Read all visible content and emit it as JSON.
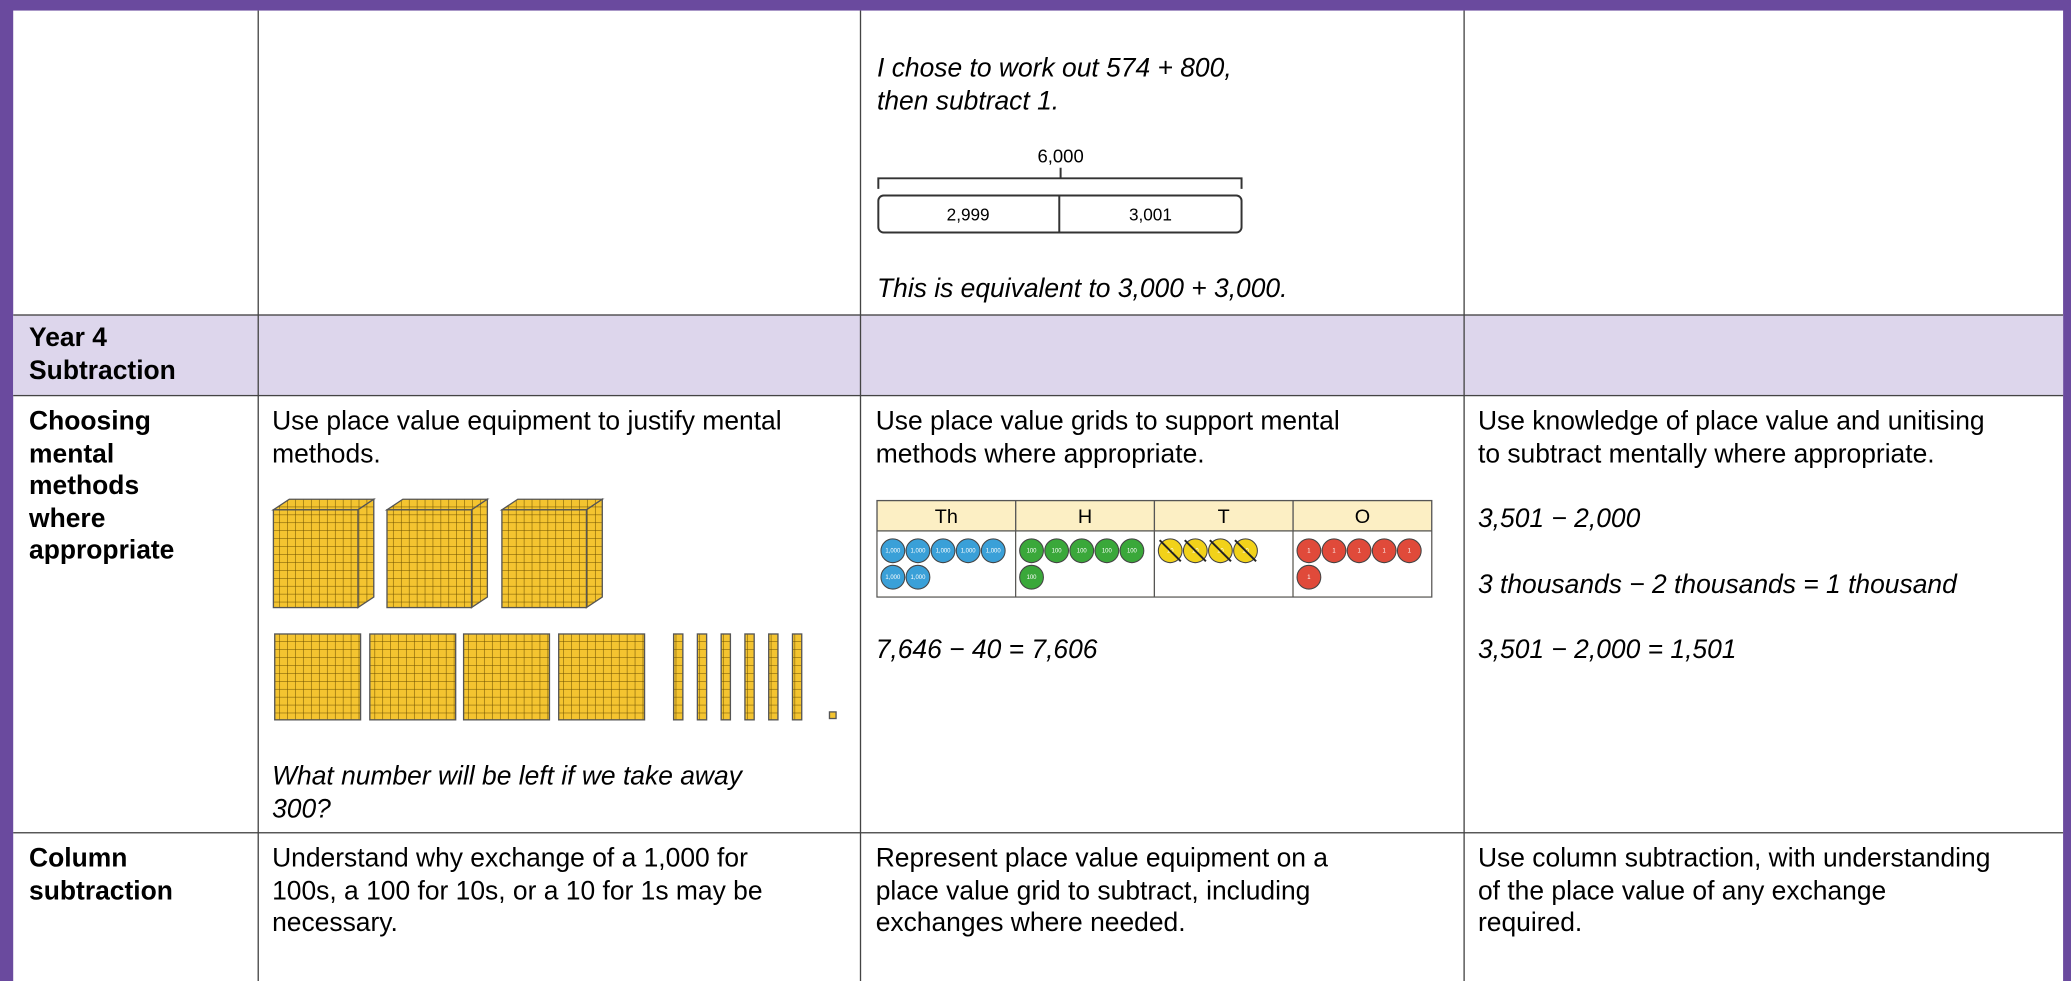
{
  "previous_row": {
    "intro": "I chose to work out 574 + 800,\nthen subtract 1.",
    "bar_model": {
      "whole": "6,000",
      "parts": [
        "2,999",
        "3,001"
      ]
    },
    "conclusion": "This is equivalent to 3,000 + 3,000."
  },
  "section_header": "Year 4\nSubtraction",
  "rows": [
    {
      "heading": "Choosing\nmental\nmethods\nwhere\nappropriate",
      "col1": {
        "text": "Use place value equipment to justify mental\nmethods.",
        "question": "What number will be left if we take away\n300?"
      },
      "col2": {
        "text": "Use place value grids to support mental\nmethods where appropriate.",
        "grid": {
          "headers": [
            "Th",
            "H",
            "T",
            "O"
          ],
          "counters": [
            [
              "1,000",
              "1,000",
              "1,000",
              "1,000",
              "1,000",
              "1,000",
              "1,000"
            ],
            [
              "100",
              "100",
              "100",
              "100",
              "100",
              "100"
            ],
            [
              "10",
              "10",
              "10",
              "10"
            ],
            [
              "1",
              "1",
              "1",
              "1",
              "1",
              "1"
            ]
          ]
        },
        "equation": "7,646 − 40 = 7,606"
      },
      "col3": {
        "text": "Use knowledge of place value and unitising\nto subtract mentally where appropriate.",
        "lines": [
          "3,501 − 2,000",
          "3 thousands − 2 thousands = 1 thousand",
          "3,501 − 2,000 = 1,501"
        ]
      }
    },
    {
      "heading": "Column\nsubtraction",
      "col1": {
        "text": "Understand why exchange of a 1,000 for\n100s, a 100 for 10s, or a 10 for 1s may be\nnecessary."
      },
      "col2": {
        "text": "Represent place value equipment on a\nplace value grid to subtract, including\nexchanges where needed."
      },
      "col3": {
        "text": "Use column subtraction, with understanding\nof the place value of any exchange\nrequired."
      }
    }
  ]
}
